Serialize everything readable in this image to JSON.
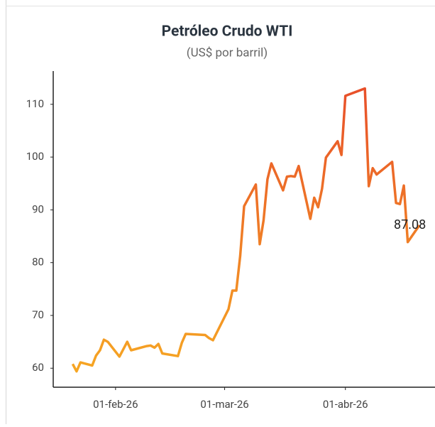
{
  "chart_data": {
    "type": "line",
    "title": "Petróleo Crudo WTI",
    "subtitle": "(US$ por barril)",
    "x": [
      "2026-01-21",
      "2026-01-22",
      "2026-01-23",
      "2026-01-26",
      "2026-01-27",
      "2026-01-28",
      "2026-01-29",
      "2026-01-30",
      "2026-02-02",
      "2026-02-04",
      "2026-02-05",
      "2026-02-09",
      "2026-02-10",
      "2026-02-11",
      "2026-02-12",
      "2026-02-13",
      "2026-02-17",
      "2026-02-18",
      "2026-02-19",
      "2026-02-24",
      "2026-02-25",
      "2026-02-26",
      "2026-03-02",
      "2026-03-03",
      "2026-03-04",
      "2026-03-05",
      "2026-03-06",
      "2026-03-09",
      "2026-03-10",
      "2026-03-11",
      "2026-03-12",
      "2026-03-13",
      "2026-03-16",
      "2026-03-17",
      "2026-03-18",
      "2026-03-19",
      "2026-03-20",
      "2026-03-23",
      "2026-03-24",
      "2026-03-25",
      "2026-03-26",
      "2026-03-27",
      "2026-03-30",
      "2026-03-31",
      "2026-04-01",
      "2026-04-06",
      "2026-04-07",
      "2026-04-08",
      "2026-04-09",
      "2026-04-13",
      "2026-04-14",
      "2026-04-15",
      "2026-04-16",
      "2026-04-17",
      "2026-04-20"
    ],
    "series": [
      {
        "name": "WTI",
        "values": [
          60.8,
          59.4,
          61.1,
          60.5,
          62.4,
          63.4,
          65.4,
          65.0,
          62.2,
          65.0,
          63.4,
          64.2,
          64.3,
          63.9,
          64.6,
          62.8,
          62.3,
          64.8,
          66.5,
          66.3,
          65.7,
          65.3,
          71.2,
          74.7,
          74.7,
          81.3,
          90.7,
          94.8,
          83.5,
          88.0,
          95.8,
          98.8,
          93.7,
          96.3,
          96.4,
          96.3,
          98.3,
          88.3,
          92.3,
          90.5,
          94.0,
          99.9,
          103.0,
          100.4,
          111.6,
          113.0,
          94.5,
          97.9,
          96.7,
          99.1,
          91.3,
          91.1,
          94.6,
          83.9,
          87.08
        ]
      }
    ],
    "last_value_label": "87.08",
    "gradient": [
      "#f6a623",
      "#e8502a"
    ],
    "xlim": [
      "2026-01-16",
      "2026-04-24"
    ],
    "xticks": [
      {
        "value": "2026-02-01",
        "label": "01-feb-26"
      },
      {
        "value": "2026-03-01",
        "label": "01-mar-26"
      },
      {
        "value": "2026-04-01",
        "label": "01-abr-26"
      }
    ],
    "ylim": [
      56.4,
      116.3
    ],
    "yticks": [
      60,
      70,
      80,
      90,
      100,
      110
    ],
    "grid": false
  }
}
